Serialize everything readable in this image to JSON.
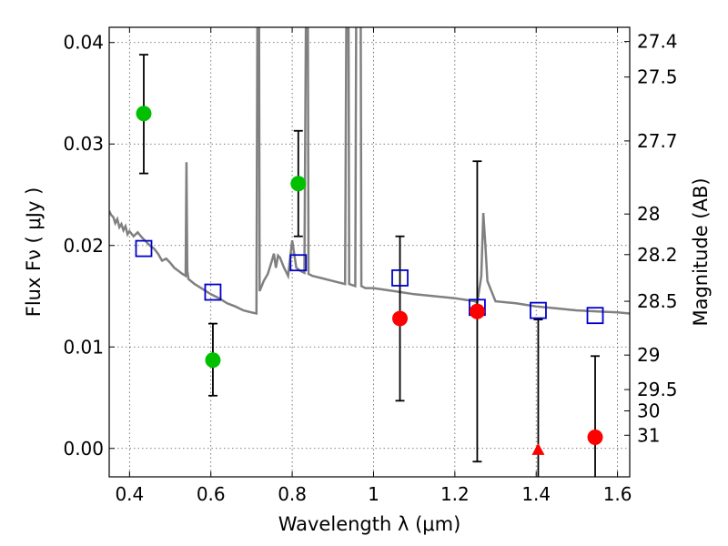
{
  "chart_data": {
    "type": "scatter",
    "xlabel": "Wavelength  λ (μm)",
    "ylabel": "Flux  Fν  ( μJy )",
    "y2label": "Magnitude (AB)",
    "xlim": [
      0.35,
      1.63
    ],
    "ylim": [
      -0.0028,
      0.0415
    ],
    "grid": true,
    "x_ticks": [
      0.4,
      0.6,
      0.8,
      1.0,
      1.2,
      1.4,
      1.6
    ],
    "x_tick_labels": [
      "0.4",
      "0.6",
      "0.8",
      "1",
      "1.2",
      "1.4",
      "1.6"
    ],
    "y_ticks": [
      0.0,
      0.01,
      0.02,
      0.03,
      0.04
    ],
    "y_tick_labels": [
      "0.00",
      "0.01",
      "0.02",
      "0.03",
      "0.04"
    ],
    "y2_ticks": [
      {
        "label": "27.4",
        "flux": 0.0401
      },
      {
        "label": "27.5",
        "flux": 0.0366
      },
      {
        "label": "27.7",
        "flux": 0.0303
      },
      {
        "label": "28",
        "flux": 0.0231
      },
      {
        "label": "28.2",
        "flux": 0.0191
      },
      {
        "label": "28.5",
        "flux": 0.0145
      },
      {
        "label": "29",
        "flux": 0.0092
      },
      {
        "label": "29.5",
        "flux": 0.0058
      },
      {
        "label": "30",
        "flux": 0.0037
      },
      {
        "label": "31",
        "flux": 0.0013
      }
    ],
    "colors": {
      "model": "#808080",
      "detected": "#00c000",
      "undetected": "#ff0000",
      "model_band": "#0000cc",
      "errorbar": "#000000"
    },
    "series": [
      {
        "kind": "model_spectrum",
        "x": [
          0.35,
          0.355,
          0.36,
          0.365,
          0.37,
          0.375,
          0.38,
          0.385,
          0.39,
          0.395,
          0.4,
          0.41,
          0.42,
          0.43,
          0.44,
          0.45,
          0.46,
          0.47,
          0.48,
          0.49,
          0.5,
          0.51,
          0.52,
          0.53,
          0.538,
          0.54,
          0.542,
          0.545,
          0.56,
          0.58,
          0.6,
          0.62,
          0.64,
          0.66,
          0.68,
          0.7,
          0.712,
          0.715,
          0.718,
          0.72,
          0.725,
          0.73,
          0.74,
          0.75,
          0.755,
          0.76,
          0.765,
          0.77,
          0.775,
          0.78,
          0.79,
          0.8,
          0.81,
          0.82,
          0.83,
          0.835,
          0.838,
          0.84,
          0.85,
          0.87,
          0.9,
          0.93,
          0.934,
          0.936,
          0.938,
          0.94,
          0.955,
          0.958,
          0.96,
          0.962,
          0.965,
          0.968,
          0.97,
          0.98,
          1.0,
          1.05,
          1.1,
          1.15,
          1.2,
          1.25,
          1.255,
          1.265,
          1.27,
          1.275,
          1.28,
          1.3,
          1.35,
          1.4,
          1.45,
          1.5,
          1.55,
          1.6,
          1.63
        ],
        "y": [
          0.0234,
          0.023,
          0.0228,
          0.0222,
          0.0226,
          0.0218,
          0.0221,
          0.0215,
          0.0219,
          0.0211,
          0.0214,
          0.0209,
          0.0213,
          0.0208,
          0.0204,
          0.02,
          0.0197,
          0.0192,
          0.0185,
          0.0187,
          0.0183,
          0.0178,
          0.0175,
          0.0172,
          0.017,
          0.0282,
          0.0175,
          0.0167,
          0.0162,
          0.0157,
          0.0152,
          0.0148,
          0.0143,
          0.014,
          0.0136,
          0.0134,
          0.0133,
          0.05,
          0.05,
          0.0155,
          0.016,
          0.0165,
          0.0172,
          0.0185,
          0.0192,
          0.0178,
          0.019,
          0.0188,
          0.0183,
          0.0178,
          0.017,
          0.0205,
          0.0178,
          0.0175,
          0.0173,
          0.05,
          0.05,
          0.0172,
          0.017,
          0.0168,
          0.0165,
          0.0162,
          0.05,
          0.05,
          0.05,
          0.0162,
          0.016,
          0.05,
          0.05,
          0.05,
          0.05,
          0.05,
          0.016,
          0.0158,
          0.0158,
          0.0155,
          0.0152,
          0.015,
          0.0148,
          0.0145,
          0.0143,
          0.017,
          0.0232,
          0.02,
          0.0165,
          0.0145,
          0.0143,
          0.014,
          0.0138,
          0.0136,
          0.0135,
          0.0134,
          0.0133
        ]
      },
      {
        "kind": "model_band_flux",
        "x": [
          0.435,
          0.605,
          0.815,
          1.065,
          1.255,
          1.405,
          1.545
        ],
        "y": [
          0.0197,
          0.0154,
          0.0183,
          0.0168,
          0.0139,
          0.0136,
          0.0131
        ]
      },
      {
        "kind": "detected",
        "x": [
          0.435,
          0.605,
          0.815
        ],
        "y": [
          0.033,
          0.0087,
          0.0261
        ],
        "yerr_low": [
          0.0271,
          0.0052,
          0.0209
        ],
        "yerr_high": [
          0.0388,
          0.0123,
          0.0313
        ]
      },
      {
        "kind": "undetected",
        "x": [
          1.065,
          1.255,
          1.545
        ],
        "y": [
          0.0128,
          0.0135,
          0.0011
        ],
        "yerr_low": [
          0.0047,
          -0.0013,
          -0.004
        ],
        "yerr_high": [
          0.0209,
          0.0283,
          0.0091
        ]
      },
      {
        "kind": "undetected_marker",
        "marker": "triangle",
        "x": [
          1.405
        ],
        "y": [
          -0.0001
        ],
        "yerr_low": [
          -0.004
        ],
        "yerr_high": [
          0.0127
        ]
      }
    ]
  }
}
